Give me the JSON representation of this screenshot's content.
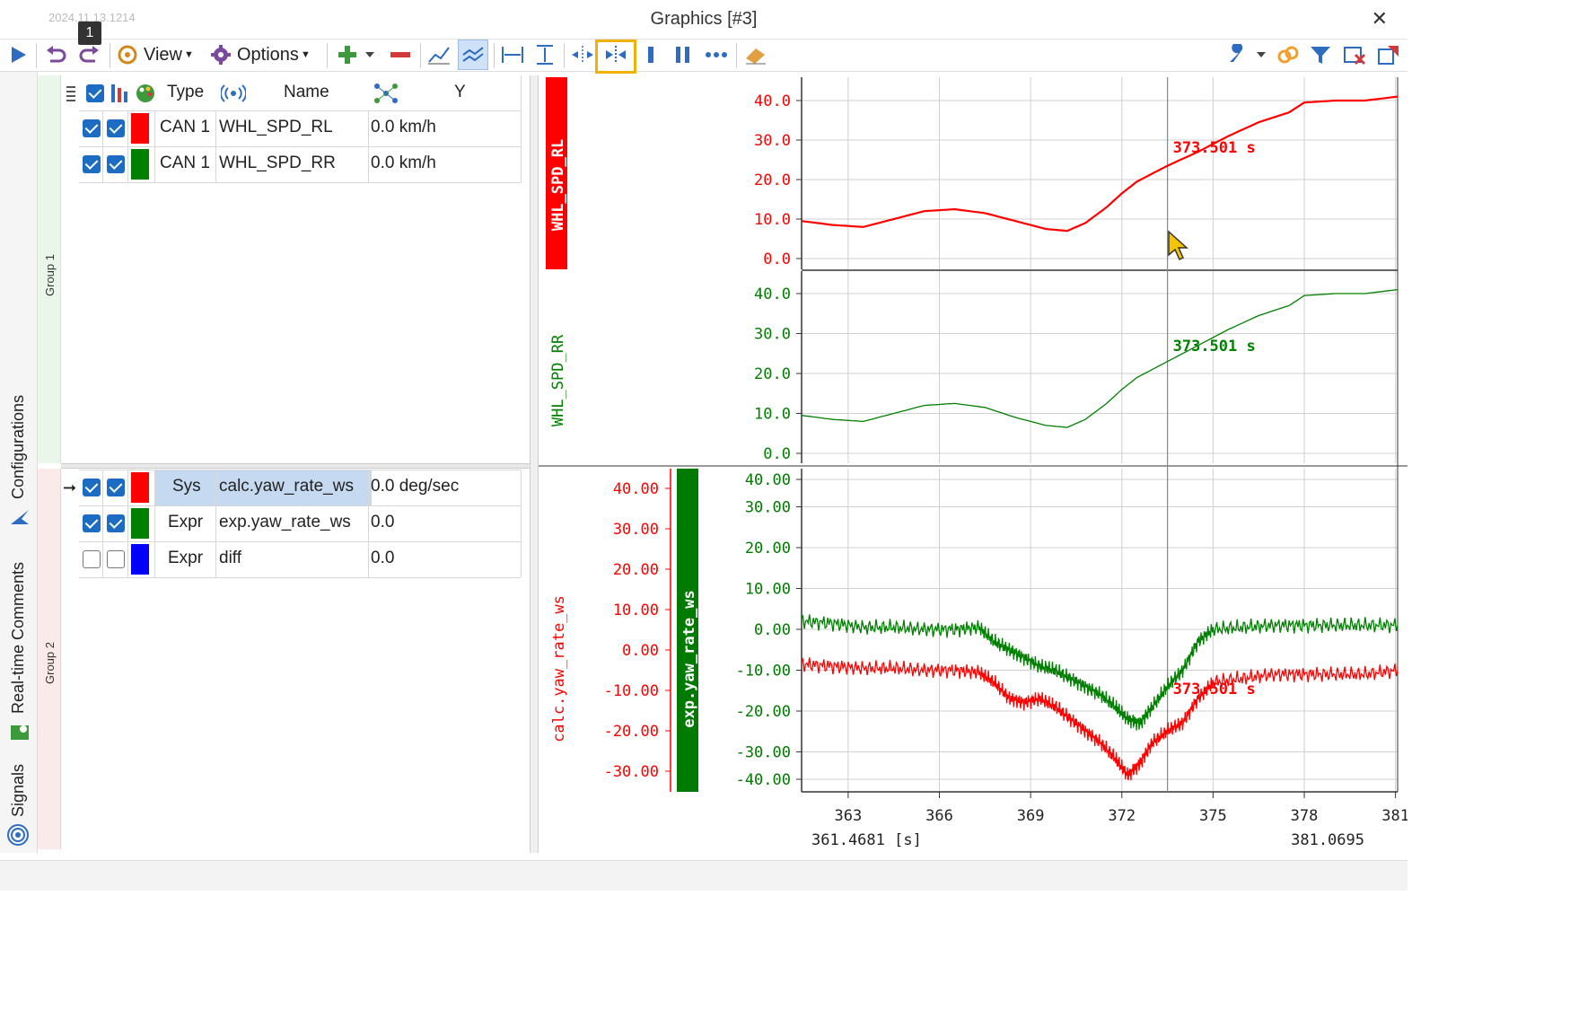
{
  "window": {
    "title": "Graphics [#3]",
    "stamp": "2024.11.13.1214",
    "badge": "1",
    "close": "✕"
  },
  "toolbar": {
    "view_label": "View",
    "options_label": "Options"
  },
  "sidebar": {
    "tabs": [
      "Configurations",
      "Real-time Comments",
      "Signals"
    ]
  },
  "groups": [
    "Group 1",
    "Group 2"
  ],
  "table": {
    "headers": {
      "type": "Type",
      "name": "Name",
      "y": "Y"
    },
    "group1": [
      {
        "checked1": true,
        "checked2": true,
        "color": "#ff0000",
        "type": "CAN 1",
        "name": "WHL_SPD_RL",
        "y": "0.0 km/h"
      },
      {
        "checked1": true,
        "checked2": true,
        "color": "#008000",
        "type": "CAN 1",
        "name": "WHL_SPD_RR",
        "y": "0.0 km/h"
      }
    ],
    "group2": [
      {
        "checked1": true,
        "checked2": true,
        "color": "#ff0000",
        "type": "Sys",
        "name": "calc.yaw_rate_ws",
        "y": "0.0 deg/sec",
        "selected": true
      },
      {
        "checked1": true,
        "checked2": true,
        "color": "#008000",
        "type": "Expr",
        "name": "exp.yaw_rate_ws",
        "y": "0.0",
        "selected": false
      },
      {
        "checked1": false,
        "checked2": false,
        "color": "#0000ff",
        "type": "Expr",
        "name": "diff",
        "y": "0.0",
        "selected": false
      }
    ]
  },
  "colors": {
    "red": "#ff0000",
    "green": "#008000",
    "darkgreen": "#007a00",
    "accent": "#f1b100",
    "select": "#c5d9f1"
  },
  "chart_data": [
    {
      "type": "line",
      "title": "",
      "series": [
        {
          "name": "WHL_SPD_RL",
          "color": "#ff0000",
          "x": [
            361.47,
            362.5,
            363.5,
            364.5,
            365.5,
            366.5,
            367.5,
            368.5,
            369.5,
            370.2,
            370.8,
            371.5,
            372.0,
            372.5,
            373.5,
            374.5,
            375.5,
            376.5,
            377.5,
            378.0,
            379.0,
            380.0,
            381.07
          ],
          "y": [
            9.5,
            8.5,
            8.0,
            10.0,
            12.0,
            12.5,
            11.5,
            9.5,
            7.5,
            7.0,
            9.0,
            13.0,
            16.5,
            19.5,
            23.5,
            27.0,
            31.0,
            34.5,
            37.0,
            39.5,
            40.0,
            40.0,
            41.0
          ]
        }
      ],
      "ylabel": "WHL_SPD_RL",
      "ylim": [
        -3,
        45
      ],
      "yticks": [
        "40.0",
        "30.0",
        "20.0",
        "10.0",
        "0.0"
      ],
      "cursor_label": "373.501 s"
    },
    {
      "type": "line",
      "title": "",
      "series": [
        {
          "name": "WHL_SPD_RR",
          "color": "#008000",
          "x": [
            361.47,
            362.5,
            363.5,
            364.5,
            365.5,
            366.5,
            367.5,
            368.5,
            369.5,
            370.2,
            370.8,
            371.5,
            372.0,
            372.5,
            373.5,
            374.5,
            375.5,
            376.5,
            377.5,
            378.0,
            379.0,
            380.0,
            381.07
          ],
          "y": [
            9.5,
            8.5,
            8.0,
            10.0,
            12.0,
            12.5,
            11.5,
            9.0,
            7.0,
            6.5,
            8.5,
            12.5,
            16.0,
            19.0,
            23.0,
            27.0,
            31.0,
            34.5,
            37.0,
            39.5,
            40.0,
            40.0,
            41.0
          ]
        }
      ],
      "ylabel": "WHL_SPD_RR",
      "ylim": [
        -3,
        45
      ],
      "yticks": [
        "40.0",
        "30.0",
        "20.0",
        "10.0",
        "0.0"
      ],
      "cursor_label": "373.501 s"
    },
    {
      "type": "line",
      "title": "",
      "series": [
        {
          "name": "calc.yaw_rate_ws",
          "color": "#ff0000",
          "x": [
            361.47,
            362.5,
            363.5,
            364.5,
            365.5,
            366.5,
            367.3,
            367.8,
            368.3,
            368.8,
            369.3,
            369.8,
            370.3,
            370.8,
            371.3,
            371.8,
            372.2,
            372.6,
            373.0,
            373.5,
            374.0,
            374.5,
            375.0,
            376.0,
            377.0,
            378.0,
            379.0,
            380.0,
            381.07
          ],
          "y": [
            -3.5,
            -4,
            -4.5,
            -4.5,
            -5,
            -5,
            -5.5,
            -8,
            -12,
            -13,
            -12,
            -14,
            -17,
            -20,
            -23,
            -27,
            -31,
            -28,
            -23,
            -20,
            -18,
            -12,
            -8,
            -7,
            -6,
            -6,
            -6,
            -6,
            -5
          ]
        },
        {
          "name": "exp.yaw_rate_ws",
          "color": "#008000",
          "x": [
            361.47,
            362.5,
            363.5,
            364.5,
            365.5,
            366.5,
            367.3,
            367.8,
            368.3,
            368.8,
            369.3,
            369.8,
            370.3,
            370.8,
            371.3,
            371.8,
            372.2,
            372.6,
            373.0,
            373.5,
            374.0,
            374.5,
            375.0,
            376.0,
            377.0,
            378.0,
            379.0,
            380.0,
            381.07
          ],
          "y": [
            2,
            1.5,
            0.5,
            0.5,
            0,
            0,
            0.5,
            -3,
            -5,
            -7,
            -9,
            -10,
            -12,
            -14,
            -16,
            -19,
            -22,
            -23,
            -19,
            -14,
            -10,
            -3,
            0,
            0.5,
            1,
            1,
            1,
            1,
            1
          ]
        }
      ],
      "ylabel_left": "calc.yaw_rate_ws",
      "ylabel_right": "exp.yaw_rate_ws",
      "ylim": [
        -40,
        40
      ],
      "yticks_left": [
        "40.00",
        "30.00",
        "20.00",
        "10.00",
        "0.00",
        "-10.00",
        "-20.00",
        "-30.00"
      ],
      "yticks_right": [
        "40.00",
        "30.00",
        "20.00",
        "10.00",
        "0.00",
        "-10.00",
        "-20.00",
        "-30.00",
        "-40.00"
      ],
      "cursor_label": "373.501 s"
    }
  ],
  "xaxis": {
    "xlim": [
      361.4681,
      381.0695
    ],
    "ticks": [
      363,
      366,
      369,
      372,
      375,
      378,
      381
    ],
    "tick_labels": [
      "363",
      "366",
      "369",
      "372",
      "375",
      "378",
      "381"
    ],
    "start_label": "361.4681 [s]",
    "end_label": "381.0695",
    "cursor": 373.501
  }
}
